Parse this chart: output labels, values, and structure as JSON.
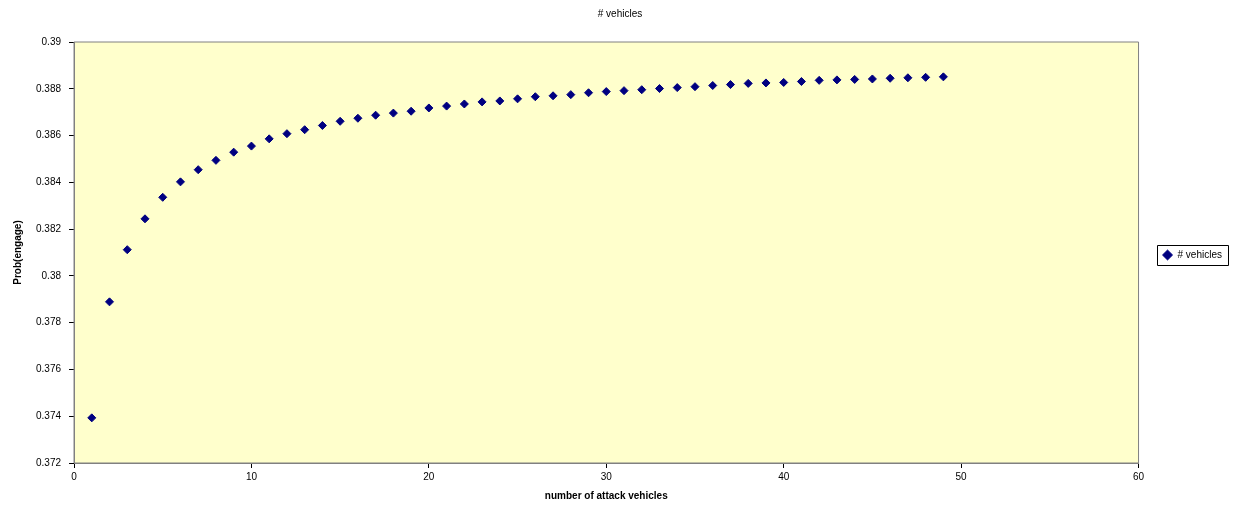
{
  "chart_data": {
    "type": "scatter",
    "title": "# vehicles",
    "xlabel": "number of attack vehicles",
    "ylabel": "Prob(engage)",
    "x": [
      1,
      2,
      3,
      4,
      5,
      6,
      7,
      8,
      9,
      10,
      11,
      12,
      13,
      14,
      15,
      16,
      17,
      18,
      19,
      20,
      21,
      22,
      23,
      24,
      25,
      26,
      27,
      28,
      29,
      30,
      31,
      32,
      33,
      34,
      35,
      36,
      37,
      38,
      39,
      40,
      41,
      42,
      43,
      44,
      45,
      46,
      47,
      48,
      49
    ],
    "series": [
      {
        "name": "# vehicles",
        "color": "#000080",
        "values": [
          0.37393,
          0.37889,
          0.38112,
          0.38244,
          0.38336,
          0.38402,
          0.38454,
          0.38494,
          0.38529,
          0.38555,
          0.38586,
          0.38608,
          0.38625,
          0.38643,
          0.38661,
          0.38674,
          0.38687,
          0.38696,
          0.38704,
          0.38718,
          0.38726,
          0.38735,
          0.38744,
          0.38748,
          0.38757,
          0.38766,
          0.3877,
          0.38775,
          0.38783,
          0.38788,
          0.38792,
          0.38796,
          0.38801,
          0.38805,
          0.38809,
          0.38814,
          0.38818,
          0.38823,
          0.38825,
          0.38827,
          0.38831,
          0.38836,
          0.38838,
          0.3884,
          0.38842,
          0.38845,
          0.38847,
          0.38849,
          0.38851
        ]
      }
    ],
    "xlim": [
      0,
      60
    ],
    "xticks": [
      0,
      10,
      20,
      30,
      40,
      50,
      60
    ],
    "ylim": [
      0.372,
      0.39
    ],
    "yticks": [
      0.372,
      0.374,
      0.376,
      0.378,
      0.38,
      0.382,
      0.384,
      0.386,
      0.388,
      0.39
    ],
    "grid": false,
    "legend": "right",
    "marker": "diamond"
  }
}
